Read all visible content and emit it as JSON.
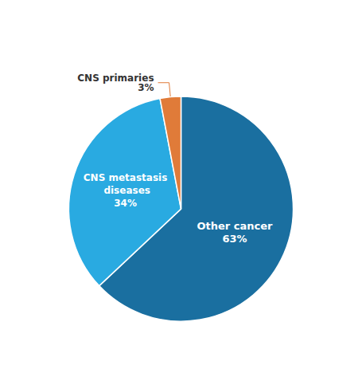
{
  "chart_data": {
    "type": "pie",
    "categories": [
      "Other cancer",
      "CNS metastasis diseases",
      "CNS primaries"
    ],
    "values": [
      63,
      34,
      3
    ],
    "value_labels": [
      "63%",
      "34%",
      "3%"
    ],
    "colors": [
      "#1a6fa0",
      "#29aae1",
      "#e07b39"
    ],
    "data_labels": true,
    "legend": false
  }
}
